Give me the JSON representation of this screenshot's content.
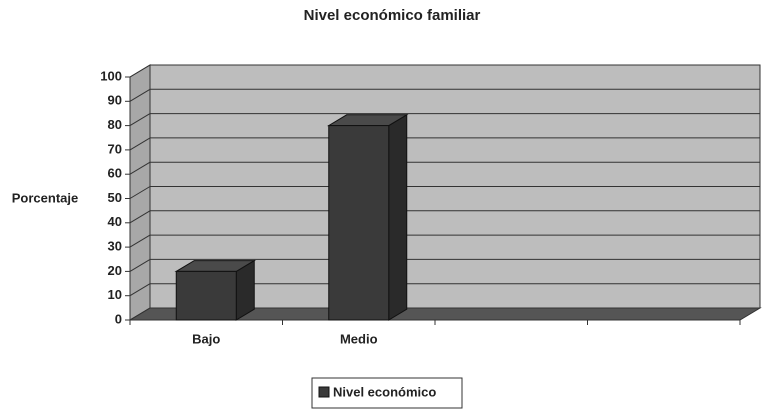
{
  "chart_data": {
    "type": "bar3d",
    "title": "Nivel económico familiar",
    "y_label": "Porcentaje",
    "categories": [
      "Bajo",
      "Medio",
      null,
      null
    ],
    "series": [
      {
        "name": "Nivel económico",
        "color": "#3a3a3a",
        "values": [
          20,
          80,
          null,
          null
        ]
      }
    ],
    "ylim": [
      0,
      100
    ],
    "yticks": [
      0,
      10,
      20,
      30,
      40,
      50,
      60,
      70,
      80,
      90,
      100
    ],
    "grid": true,
    "legend": "bottom"
  }
}
